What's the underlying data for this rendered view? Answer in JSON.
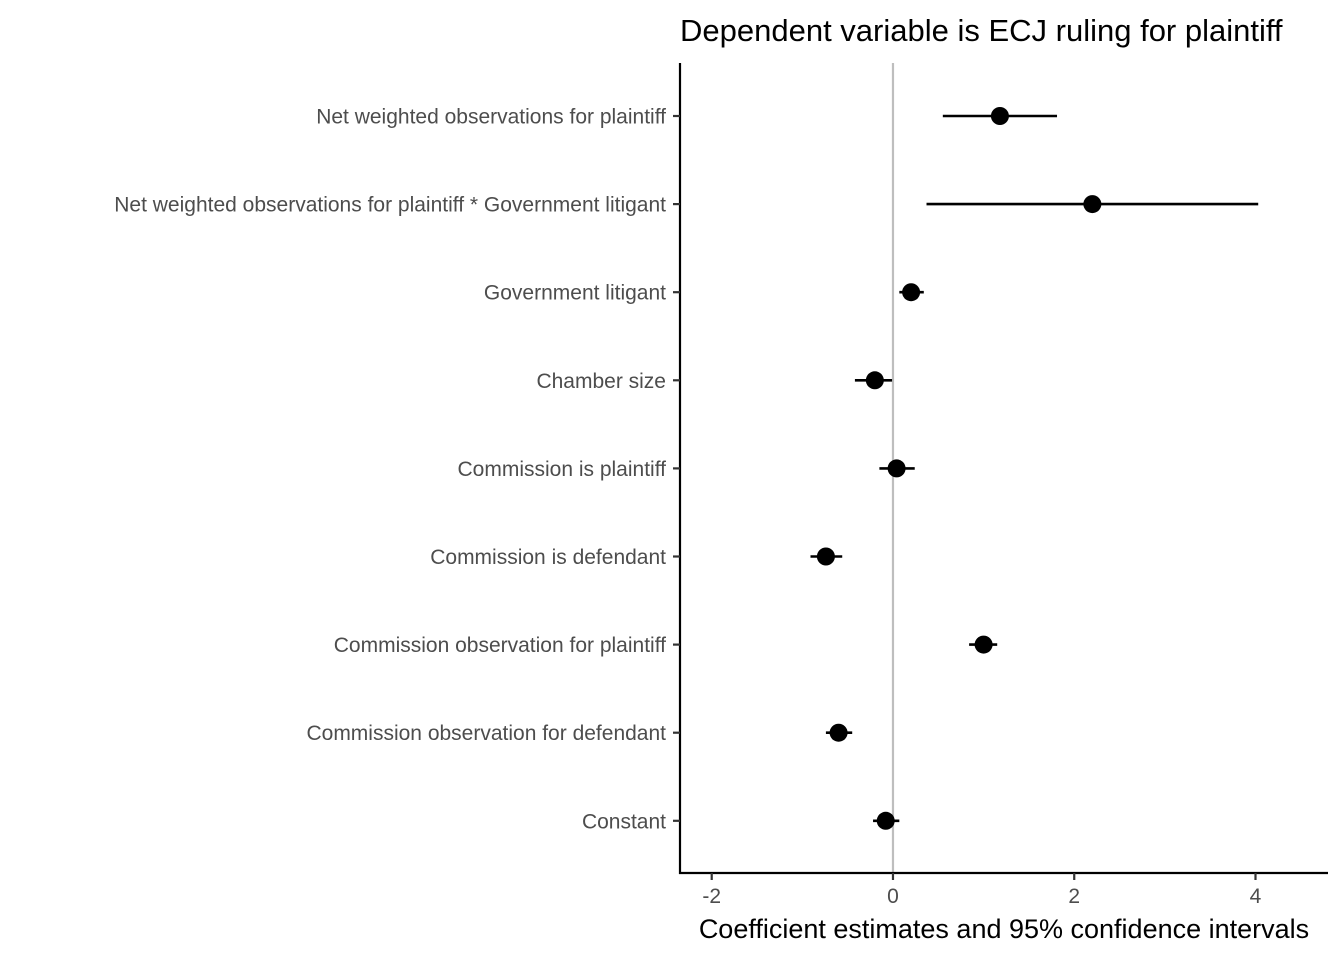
{
  "chart_data": {
    "type": "coefficient-plot",
    "title": "Dependent variable is ECJ ruling for plaintiff",
    "xlabel": "Coefficient estimates and 95% confidence intervals",
    "ylabel": "",
    "xlim": [
      -2.35,
      4.8
    ],
    "xticks": [
      -2,
      0,
      2,
      4
    ],
    "xtick_labels": [
      "-2",
      "0",
      "2",
      "4"
    ],
    "reference_line": 0,
    "grid": false,
    "legend": "none",
    "colors": {
      "points": "#000000",
      "reference_line": "#bebebe",
      "axis": "#000000",
      "tick_text": "#4d4d4d"
    },
    "terms": [
      {
        "label": "Net weighted observations for plaintiff",
        "estimate": 1.18,
        "lower": 0.55,
        "upper": 1.81
      },
      {
        "label": "Net weighted observations for plaintiff * Government litigant",
        "estimate": 2.2,
        "lower": 0.37,
        "upper": 4.03
      },
      {
        "label": "Government litigant",
        "estimate": 0.2,
        "lower": 0.07,
        "upper": 0.34
      },
      {
        "label": "Chamber size",
        "estimate": -0.2,
        "lower": -0.42,
        "upper": -0.01
      },
      {
        "label": "Commission is plaintiff",
        "estimate": 0.04,
        "lower": -0.15,
        "upper": 0.24
      },
      {
        "label": "Commission is defendant",
        "estimate": -0.74,
        "lower": -0.91,
        "upper": -0.56
      },
      {
        "label": "Commission observation for plaintiff",
        "estimate": 1.0,
        "lower": 0.84,
        "upper": 1.15
      },
      {
        "label": "Commission observation for defendant",
        "estimate": -0.6,
        "lower": -0.74,
        "upper": -0.45
      },
      {
        "label": "Constant",
        "estimate": -0.08,
        "lower": -0.22,
        "upper": 0.07
      }
    ]
  }
}
